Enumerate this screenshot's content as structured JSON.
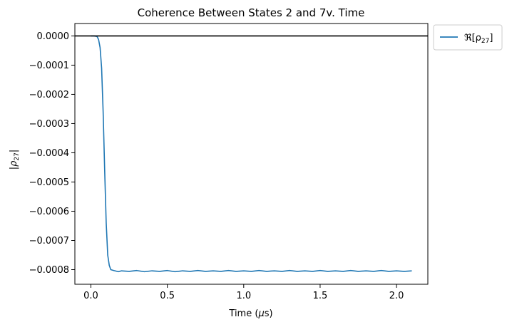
{
  "chart_data": {
    "type": "line",
    "title": "Coherence Between States 2 and 7v. Time",
    "xlabel": {
      "prefix": "Time (",
      "symbol": "μ",
      "suffix": "s)"
    },
    "ylabel": {
      "prefix": "|ρ",
      "subscript": "27",
      "suffix": "|"
    },
    "xlim": [
      -0.105,
      2.205
    ],
    "ylim": [
      -0.00085,
      4.25e-05
    ],
    "xticks": [
      {
        "value": 0.0,
        "label": "0.0"
      },
      {
        "value": 0.5,
        "label": "0.5"
      },
      {
        "value": 1.0,
        "label": "1.0"
      },
      {
        "value": 1.5,
        "label": "1.5"
      },
      {
        "value": 2.0,
        "label": "2.0"
      }
    ],
    "yticks": [
      {
        "value": 0.0,
        "label": "0.0000"
      },
      {
        "value": -0.0001,
        "label": "−0.0001"
      },
      {
        "value": -0.0002,
        "label": "−0.0002"
      },
      {
        "value": -0.0003,
        "label": "−0.0003"
      },
      {
        "value": -0.0004,
        "label": "−0.0004"
      },
      {
        "value": -0.0005,
        "label": "−0.0005"
      },
      {
        "value": -0.0006,
        "label": "−0.0006"
      },
      {
        "value": -0.0007,
        "label": "−0.0007"
      },
      {
        "value": -0.0008,
        "label": "−0.0008"
      }
    ],
    "reference_line": {
      "y": 0.0,
      "color": "#000000"
    },
    "grid": false,
    "legend": {
      "placement": "outside-top-right",
      "entries": [
        {
          "prefix": "ℜ[ρ",
          "subscript": "27",
          "suffix": "]",
          "color": "#1f77b4"
        }
      ]
    },
    "series": [
      {
        "color": "#1f77b4",
        "x": [
          0.0,
          0.02,
          0.04,
          0.05,
          0.06,
          0.07,
          0.08,
          0.09,
          0.1,
          0.11,
          0.12,
          0.13,
          0.15,
          0.18,
          0.2,
          0.25,
          0.3,
          0.35,
          0.4,
          0.45,
          0.5,
          0.55,
          0.6,
          0.65,
          0.7,
          0.75,
          0.8,
          0.85,
          0.9,
          0.95,
          1.0,
          1.05,
          1.1,
          1.15,
          1.2,
          1.25,
          1.3,
          1.35,
          1.4,
          1.45,
          1.5,
          1.55,
          1.6,
          1.65,
          1.7,
          1.75,
          1.8,
          1.85,
          1.9,
          1.95,
          2.0,
          2.05,
          2.1
        ],
        "y": [
          0.0,
          0.0,
          -2e-06,
          -1.2e-05,
          -4e-05,
          -0.00011,
          -0.00026,
          -0.00046,
          -0.00064,
          -0.00075,
          -0.000785,
          -0.0008,
          -0.000803,
          -0.000807,
          -0.000804,
          -0.000806,
          -0.000803,
          -0.000807,
          -0.000804,
          -0.000806,
          -0.000803,
          -0.000807,
          -0.000804,
          -0.000806,
          -0.000803,
          -0.000806,
          -0.000804,
          -0.000806,
          -0.000803,
          -0.000806,
          -0.000804,
          -0.000806,
          -0.000803,
          -0.000806,
          -0.000804,
          -0.000806,
          -0.000803,
          -0.000806,
          -0.000804,
          -0.000806,
          -0.000803,
          -0.000806,
          -0.000804,
          -0.000806,
          -0.000803,
          -0.000806,
          -0.000804,
          -0.000806,
          -0.000803,
          -0.000806,
          -0.000804,
          -0.000806,
          -0.000804
        ]
      }
    ]
  }
}
